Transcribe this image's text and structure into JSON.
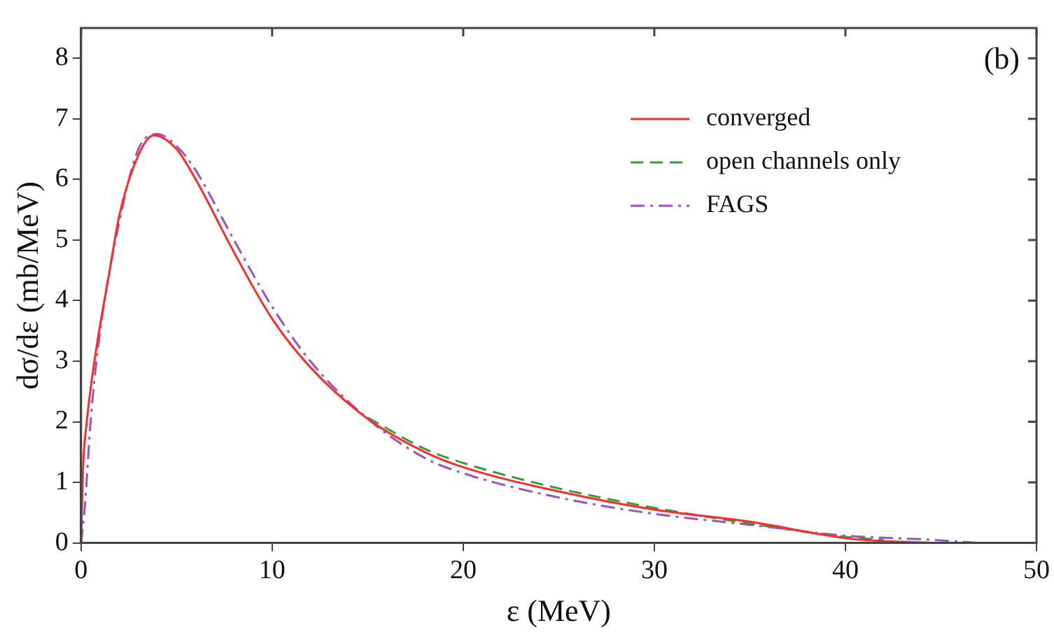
{
  "chart_data": {
    "type": "line",
    "xlabel": "ε (MeV)",
    "ylabel": "dσ/dε (mb/MeV)",
    "annotations": [
      "(b)"
    ],
    "xlim": [
      0,
      50
    ],
    "xticks": [
      0,
      10,
      20,
      30,
      40,
      50
    ],
    "ylim": [
      0,
      8.5
    ],
    "yticks": [
      0,
      1,
      2,
      3,
      4,
      5,
      6,
      7,
      8
    ],
    "grid": false,
    "legend": "top right",
    "marker": "none",
    "series": [
      {
        "name": "converged",
        "color": "#ff2a2a",
        "line_style": "solid",
        "x": [
          0,
          0.1,
          0.3,
          0.7,
          1.5,
          2,
          3,
          3.8,
          5,
          6,
          8,
          10,
          12,
          15,
          18,
          20,
          25,
          30,
          35,
          40,
          42,
          45
        ],
        "values": [
          0,
          1.2,
          2,
          3,
          4.5,
          5.4,
          6.4,
          6.73,
          6.5,
          6,
          4.8,
          3.7,
          2.9,
          2.05,
          1.5,
          1.25,
          0.85,
          0.55,
          0.35,
          0.08,
          0.03,
          0
        ]
      },
      {
        "name": "open channels only",
        "color": "#3a9a3a",
        "line_style": "dashed",
        "x": [
          15,
          18,
          20,
          25,
          30,
          35,
          40,
          42
        ],
        "values": [
          2.07,
          1.55,
          1.32,
          0.9,
          0.58,
          0.32,
          0.1,
          0.05
        ]
      },
      {
        "name": "FAGS",
        "color": "#a050c0",
        "line_style": "dashdot",
        "x": [
          0,
          0.2,
          0.5,
          1,
          2,
          3,
          4,
          5,
          6,
          8,
          10,
          12,
          15,
          18,
          20,
          25,
          30,
          35,
          40,
          44,
          47
        ],
        "values": [
          0,
          0.6,
          2,
          3.5,
          5.3,
          6.5,
          6.75,
          6.55,
          6.15,
          5,
          3.9,
          3,
          2.05,
          1.4,
          1.15,
          0.75,
          0.48,
          0.3,
          0.12,
          0.06,
          0
        ]
      }
    ]
  }
}
